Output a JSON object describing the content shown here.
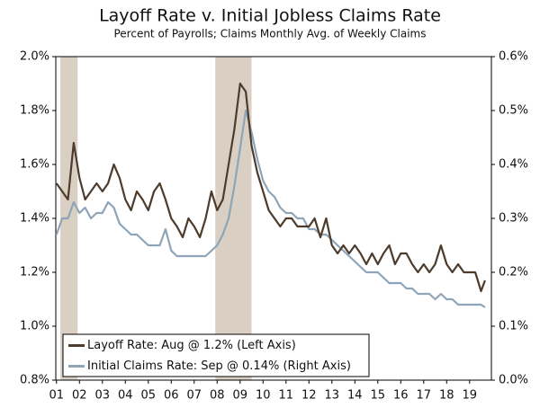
{
  "chart_data": {
    "type": "line",
    "title": "Layoff Rate v. Initial Jobless Claims Rate",
    "subtitle": "Percent of Payrolls; Claims Monthly Avg. of Weekly Claims",
    "x": [
      2001,
      2001.25,
      2001.5,
      2001.75,
      2002,
      2002.25,
      2002.5,
      2002.75,
      2003,
      2003.25,
      2003.5,
      2003.75,
      2004,
      2004.25,
      2004.5,
      2004.75,
      2005,
      2005.25,
      2005.5,
      2005.75,
      2006,
      2006.25,
      2006.5,
      2006.75,
      2007,
      2007.25,
      2007.5,
      2007.75,
      2008,
      2008.25,
      2008.5,
      2008.75,
      2009,
      2009.25,
      2009.5,
      2009.75,
      2010,
      2010.25,
      2010.5,
      2010.75,
      2011,
      2011.25,
      2011.5,
      2011.75,
      2012,
      2012.25,
      2012.5,
      2012.75,
      2013,
      2013.25,
      2013.5,
      2013.75,
      2014,
      2014.25,
      2014.5,
      2014.75,
      2015,
      2015.25,
      2015.5,
      2015.75,
      2016,
      2016.25,
      2016.5,
      2016.75,
      2017,
      2017.25,
      2017.5,
      2017.75,
      2018,
      2018.25,
      2018.5,
      2018.75,
      2019,
      2019.25,
      2019.5,
      2019.67
    ],
    "series": [
      {
        "name": "Layoff Rate: Aug @ 1.2% (Left Axis)",
        "color": "#4d3b2c",
        "axis": "y",
        "values": [
          1.53,
          1.5,
          1.47,
          1.68,
          1.55,
          1.47,
          1.5,
          1.53,
          1.5,
          1.53,
          1.6,
          1.55,
          1.47,
          1.43,
          1.5,
          1.47,
          1.43,
          1.5,
          1.53,
          1.47,
          1.4,
          1.37,
          1.33,
          1.4,
          1.37,
          1.33,
          1.4,
          1.5,
          1.43,
          1.47,
          1.6,
          1.73,
          1.9,
          1.87,
          1.67,
          1.57,
          1.5,
          1.43,
          1.4,
          1.37,
          1.4,
          1.4,
          1.37,
          1.37,
          1.37,
          1.4,
          1.33,
          1.4,
          1.3,
          1.27,
          1.3,
          1.27,
          1.3,
          1.27,
          1.23,
          1.27,
          1.23,
          1.27,
          1.3,
          1.23,
          1.27,
          1.27,
          1.23,
          1.2,
          1.23,
          1.2,
          1.23,
          1.3,
          1.23,
          1.2,
          1.23,
          1.2,
          1.2,
          1.2,
          1.13,
          1.17
        ]
      },
      {
        "name": "Initial Claims Rate: Sep @ 0.14% (Right Axis)",
        "color": "#8ea4b8",
        "axis": "y2",
        "values": [
          0.27,
          0.3,
          0.3,
          0.33,
          0.31,
          0.32,
          0.3,
          0.31,
          0.31,
          0.33,
          0.32,
          0.29,
          0.28,
          0.27,
          0.27,
          0.26,
          0.25,
          0.25,
          0.25,
          0.28,
          0.24,
          0.23,
          0.23,
          0.23,
          0.23,
          0.23,
          0.23,
          0.24,
          0.25,
          0.27,
          0.3,
          0.36,
          0.43,
          0.5,
          0.46,
          0.41,
          0.37,
          0.35,
          0.34,
          0.32,
          0.31,
          0.31,
          0.3,
          0.3,
          0.28,
          0.28,
          0.27,
          0.27,
          0.26,
          0.25,
          0.24,
          0.23,
          0.22,
          0.21,
          0.2,
          0.2,
          0.2,
          0.19,
          0.18,
          0.18,
          0.18,
          0.17,
          0.17,
          0.16,
          0.16,
          0.16,
          0.15,
          0.16,
          0.15,
          0.15,
          0.14,
          0.14,
          0.14,
          0.14,
          0.14,
          0.135
        ]
      }
    ],
    "recessions": [
      [
        2001.17,
        2001.92
      ],
      [
        2007.92,
        2009.5
      ]
    ],
    "recession_color": "#d9d0c3",
    "xlim": [
      2000.97,
      2019.95
    ],
    "xticks": [
      {
        "value": 2001,
        "label": "01"
      },
      {
        "value": 2002,
        "label": "02"
      },
      {
        "value": 2003,
        "label": "03"
      },
      {
        "value": 2004,
        "label": "04"
      },
      {
        "value": 2005,
        "label": "05"
      },
      {
        "value": 2006,
        "label": "06"
      },
      {
        "value": 2007,
        "label": "07"
      },
      {
        "value": 2008,
        "label": "08"
      },
      {
        "value": 2009,
        "label": "09"
      },
      {
        "value": 2010,
        "label": "10"
      },
      {
        "value": 2011,
        "label": "11"
      },
      {
        "value": 2012,
        "label": "12"
      },
      {
        "value": 2013,
        "label": "13"
      },
      {
        "value": 2014,
        "label": "14"
      },
      {
        "value": 2015,
        "label": "15"
      },
      {
        "value": 2016,
        "label": "16"
      },
      {
        "value": 2017,
        "label": "17"
      },
      {
        "value": 2018,
        "label": "18"
      },
      {
        "value": 2019,
        "label": "19"
      }
    ],
    "ylim": [
      0.8,
      2.0
    ],
    "yticks": [
      {
        "value": 0.8,
        "label": "0.8%"
      },
      {
        "value": 1.0,
        "label": "1.0%"
      },
      {
        "value": 1.2,
        "label": "1.2%"
      },
      {
        "value": 1.4,
        "label": "1.4%"
      },
      {
        "value": 1.6,
        "label": "1.6%"
      },
      {
        "value": 1.8,
        "label": "1.8%"
      },
      {
        "value": 2.0,
        "label": "2.0%"
      }
    ],
    "y2lim": [
      0.0,
      0.6
    ],
    "y2ticks": [
      {
        "value": 0.0,
        "label": "0.0%"
      },
      {
        "value": 0.1,
        "label": "0.1%"
      },
      {
        "value": 0.2,
        "label": "0.2%"
      },
      {
        "value": 0.3,
        "label": "0.3%"
      },
      {
        "value": 0.4,
        "label": "0.4%"
      },
      {
        "value": 0.5,
        "label": "0.5%"
      },
      {
        "value": 0.6,
        "label": "0.6%"
      }
    ],
    "legend": "lower-left",
    "grid": false
  }
}
